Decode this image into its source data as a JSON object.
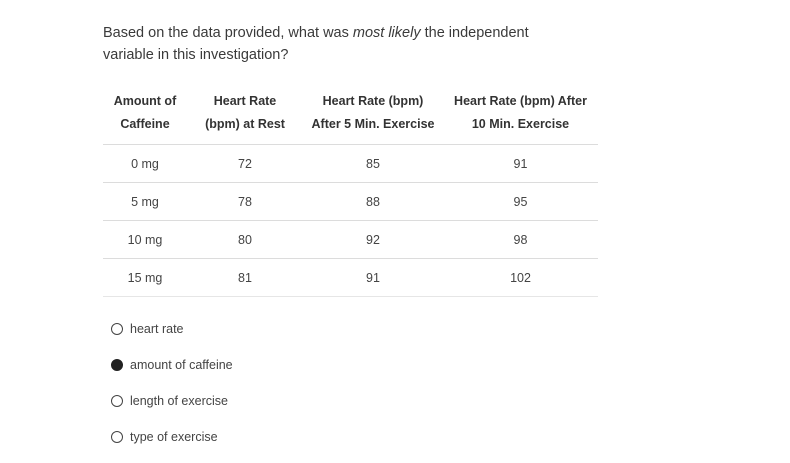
{
  "question": {
    "text_before": "Based on the data provided, what was ",
    "emphasis": "most likely",
    "text_after": " the independent variable in this investigation?"
  },
  "table": {
    "headers": [
      [
        "Amount of",
        "Caffeine"
      ],
      [
        "Heart Rate",
        "(bpm) at Rest"
      ],
      [
        "Heart Rate (bpm)",
        "After 5 Min. Exercise"
      ],
      [
        "Heart Rate (bpm) After",
        "10 Min. Exercise"
      ]
    ],
    "rows": [
      [
        "0 mg",
        "72",
        "85",
        "91"
      ],
      [
        "5 mg",
        "78",
        "88",
        "95"
      ],
      [
        "10 mg",
        "80",
        "92",
        "98"
      ],
      [
        "15 mg",
        "81",
        "91",
        "102"
      ]
    ]
  },
  "options": [
    {
      "label": "heart rate",
      "selected": false
    },
    {
      "label": "amount of caffeine",
      "selected": true
    },
    {
      "label": "length of exercise",
      "selected": false
    },
    {
      "label": "type of exercise",
      "selected": false
    }
  ]
}
